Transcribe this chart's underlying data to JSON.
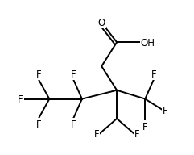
{
  "background": "#ffffff",
  "line_color": "#000000",
  "line_width": 1.4,
  "font_size": 8.5
}
